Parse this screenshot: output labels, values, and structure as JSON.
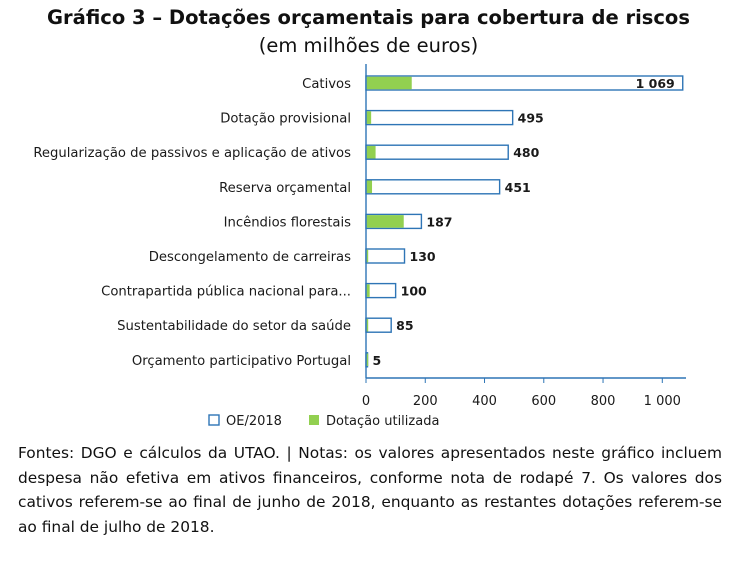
{
  "title": "Gráfico 3 – Dotações orçamentais para cobertura de riscos",
  "subtitle": "(em milhões de euros)",
  "chart_data": {
    "type": "bar",
    "orientation": "horizontal",
    "categories": [
      "Cativos",
      "Dotação provisional",
      "Regularização de passivos e aplicação de ativos",
      "Reserva orçamental",
      "Incêndios florestais",
      "Descongelamento de carreiras",
      "Contrapartida pública nacional para...",
      "Sustentabilidade do setor da saúde",
      "Orçamento participativo Portugal"
    ],
    "series": [
      {
        "name": "OE/2018",
        "values": [
          1069,
          495,
          480,
          451,
          187,
          130,
          100,
          85,
          5
        ],
        "color": "#ffffff",
        "stroke": "#2e75b6"
      },
      {
        "name": "Dotação utilizada",
        "values": [
          152,
          15,
          30,
          18,
          125,
          5,
          10,
          2,
          2
        ],
        "color": "#92d050"
      }
    ],
    "data_labels": [
      "1 069",
      "495",
      "480",
      "451",
      "187",
      "130",
      "100",
      "85",
      "5"
    ],
    "x_ticks": [
      0,
      200,
      400,
      600,
      800,
      1000
    ],
    "x_tick_labels": [
      "0",
      "200",
      "400",
      "600",
      "800",
      "1 000"
    ],
    "xlim": [
      0,
      1080
    ],
    "grid": false,
    "legend_position": "bottom"
  },
  "footnote": "Fontes: DGO e cálculos da UTAO. | Notas: os valores apresentados neste gráfico incluem despesa não efetiva em ativos financeiros, conforme nota de rodapé 7. Os valores dos cativos referem-se ao final de junho de 2018, enquanto as restantes dotações referem-se ao final de julho de 2018."
}
